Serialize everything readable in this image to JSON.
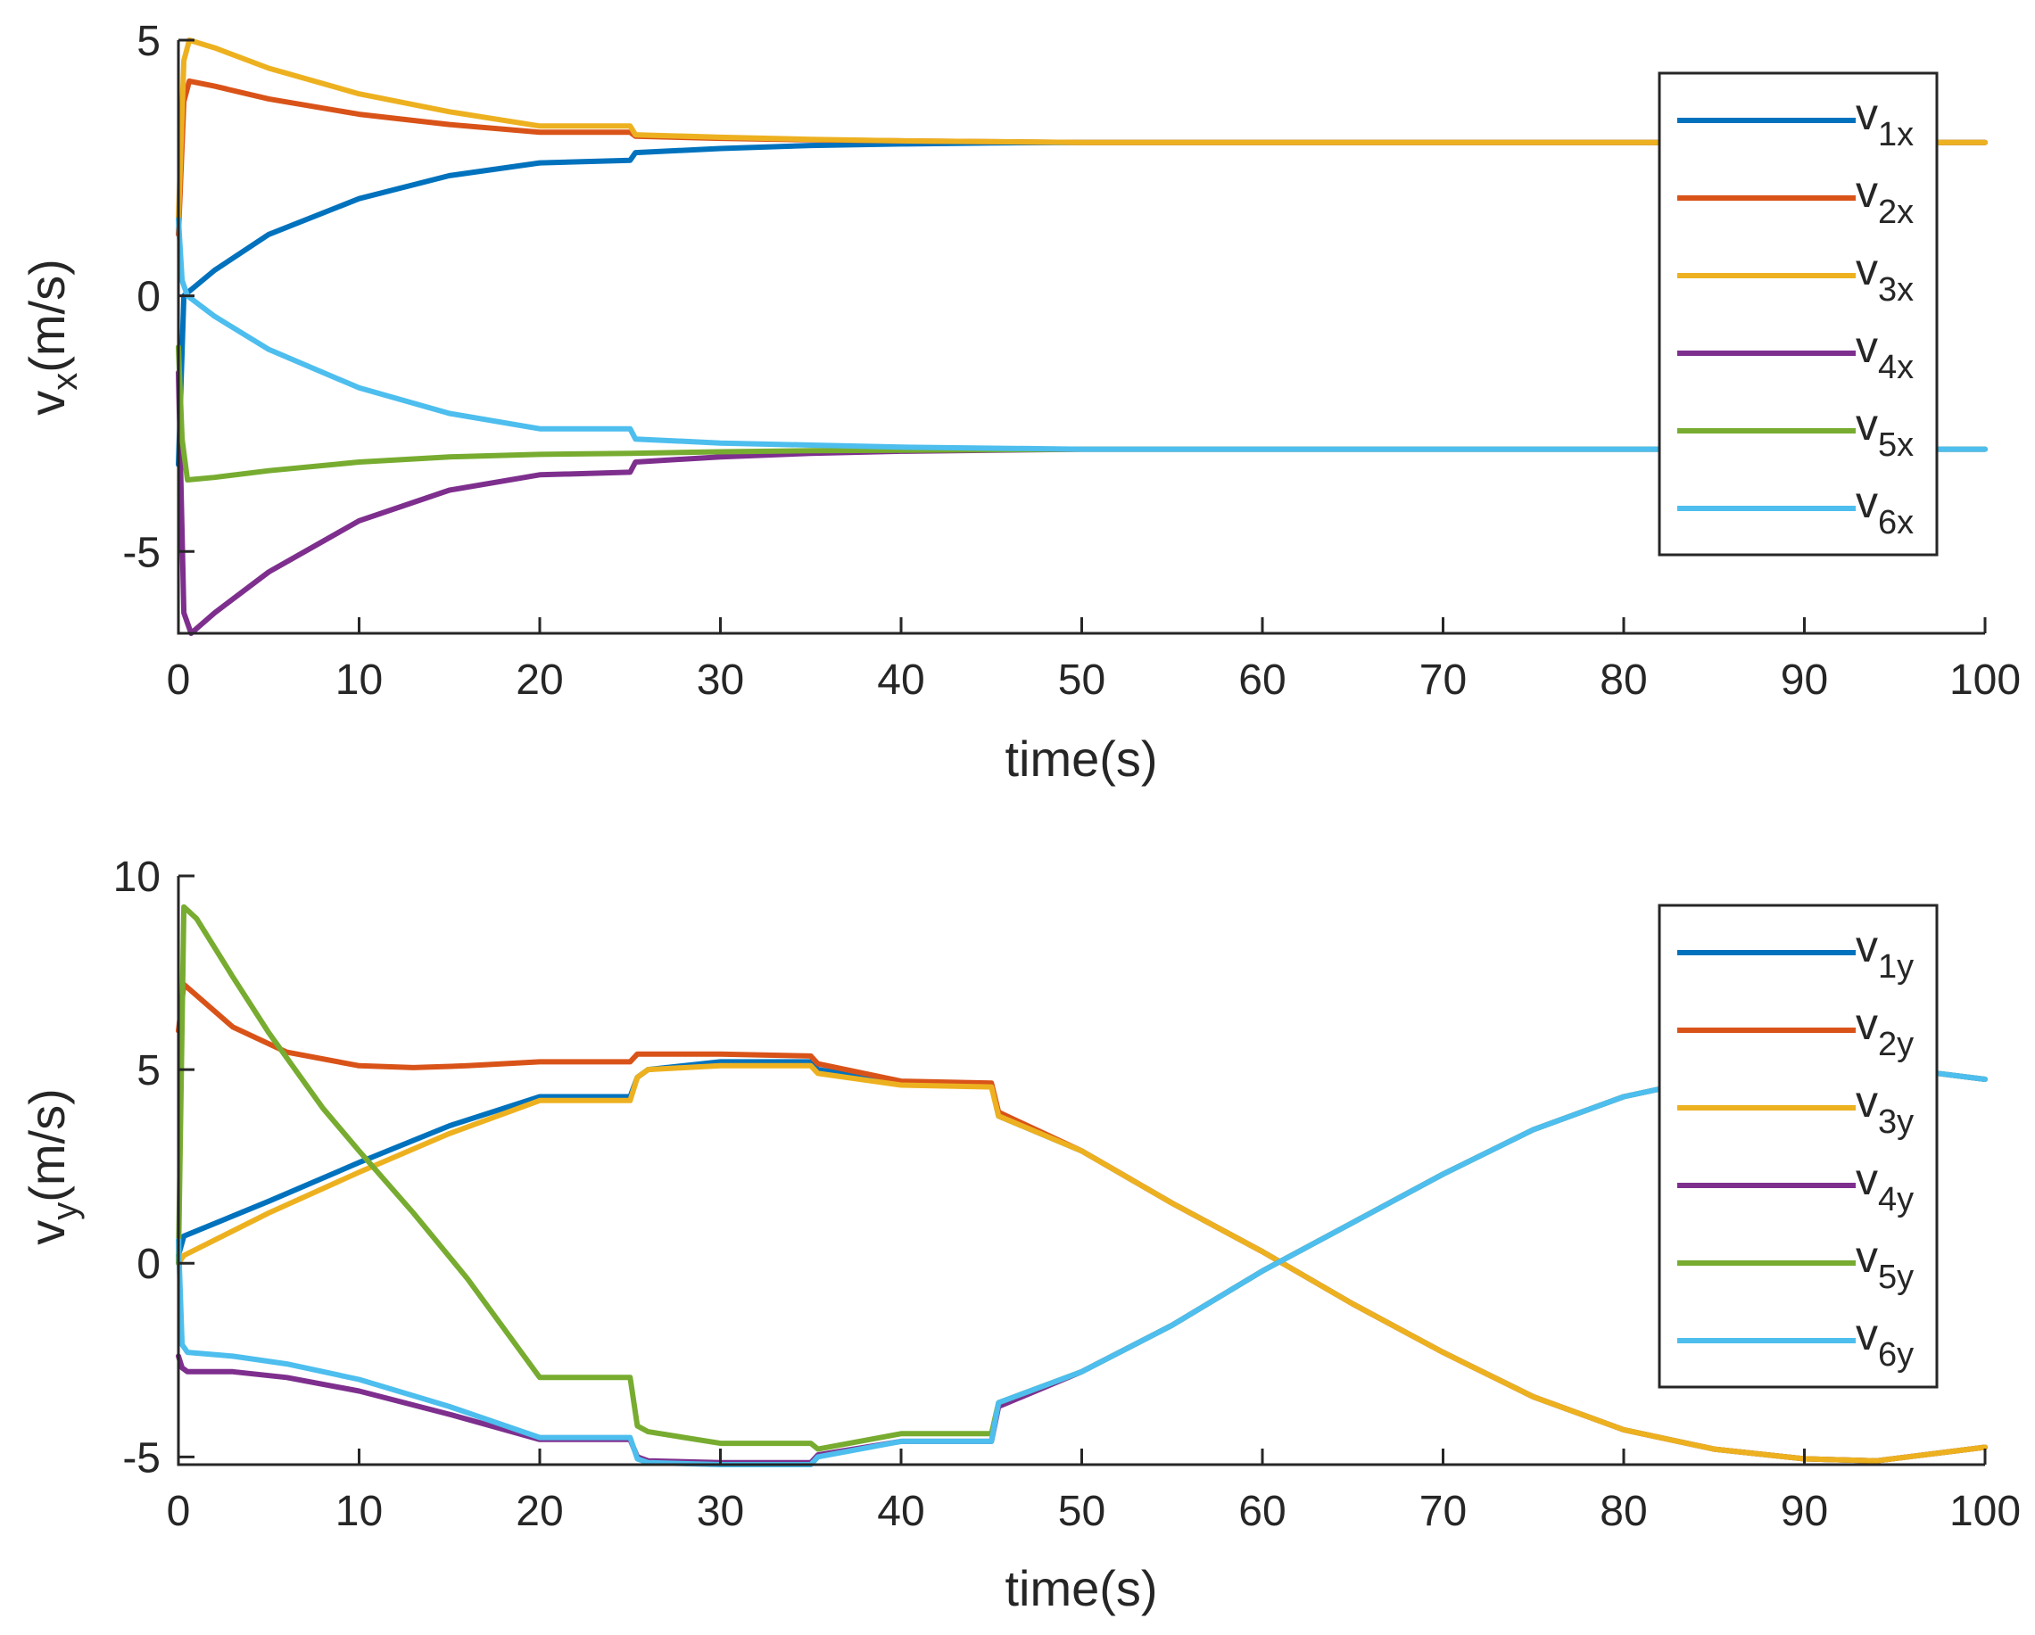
{
  "chart_data": [
    {
      "type": "line",
      "title": "",
      "xlabel": "time(s)",
      "ylabel": {
        "main": "v",
        "sub": "x",
        "unit": "(m/s)"
      },
      "xlim": [
        0,
        100
      ],
      "ylim": [
        -6.6,
        5
      ],
      "xticks": [
        0,
        10,
        20,
        30,
        40,
        50,
        60,
        70,
        80,
        90,
        100
      ],
      "yticks": [
        -5,
        0,
        5
      ],
      "grid": false,
      "legend_position": "top-right",
      "series": [
        {
          "name": "v",
          "sub": "1x",
          "color": "#0072BD",
          "x": [
            0,
            0.3,
            2,
            5,
            10,
            15,
            20,
            25,
            25.3,
            30,
            35,
            40,
            45,
            50,
            100
          ],
          "y": [
            -3.3,
            0,
            0.5,
            1.2,
            1.9,
            2.35,
            2.6,
            2.65,
            2.8,
            2.88,
            2.94,
            2.97,
            2.99,
            3.0,
            3.0
          ]
        },
        {
          "name": "v",
          "sub": "2x",
          "color": "#D95319",
          "x": [
            0,
            0.3,
            0.6,
            2,
            5,
            10,
            15,
            20,
            25,
            25.3,
            30,
            35,
            40,
            50,
            100
          ],
          "y": [
            1.2,
            3.8,
            4.2,
            4.1,
            3.85,
            3.55,
            3.35,
            3.2,
            3.2,
            3.12,
            3.08,
            3.05,
            3.03,
            3.0,
            3.0
          ]
        },
        {
          "name": "v",
          "sub": "3x",
          "color": "#EDB120",
          "x": [
            0,
            0.3,
            0.6,
            2,
            5,
            10,
            15,
            20,
            25,
            25.3,
            30,
            35,
            40,
            50,
            100
          ],
          "y": [
            1.5,
            4.6,
            5.0,
            4.85,
            4.45,
            3.95,
            3.6,
            3.32,
            3.32,
            3.15,
            3.1,
            3.06,
            3.03,
            3.0,
            3.0
          ]
        },
        {
          "name": "v",
          "sub": "4x",
          "color": "#7E2F8E",
          "x": [
            0,
            0.3,
            0.7,
            2,
            5,
            10,
            15,
            20,
            25,
            25.3,
            30,
            35,
            40,
            50,
            100
          ],
          "y": [
            -1.5,
            -6.2,
            -6.6,
            -6.2,
            -5.4,
            -4.4,
            -3.8,
            -3.5,
            -3.45,
            -3.25,
            -3.15,
            -3.08,
            -3.04,
            -3.0,
            -3.0
          ]
        },
        {
          "name": "v",
          "sub": "5x",
          "color": "#77AC30",
          "x": [
            0,
            0.2,
            0.5,
            2,
            5,
            10,
            15,
            20,
            25,
            30,
            35,
            40,
            50,
            100
          ],
          "y": [
            -1.0,
            -2.8,
            -3.6,
            -3.55,
            -3.42,
            -3.25,
            -3.15,
            -3.1,
            -3.08,
            -3.05,
            -3.03,
            -3.02,
            -3.0,
            -3.0
          ]
        },
        {
          "name": "v",
          "sub": "6x",
          "color": "#4DBEEE",
          "x": [
            0,
            0.2,
            0.5,
            2,
            5,
            10,
            15,
            20,
            25,
            25.3,
            30,
            35,
            40,
            50,
            100
          ],
          "y": [
            1.5,
            0.3,
            0.0,
            -0.4,
            -1.05,
            -1.8,
            -2.3,
            -2.6,
            -2.6,
            -2.8,
            -2.88,
            -2.92,
            -2.96,
            -3.0,
            -3.0
          ]
        }
      ]
    },
    {
      "type": "line",
      "title": "",
      "xlabel": "time(s)",
      "ylabel": {
        "main": "v",
        "sub": "y",
        "unit": "(m/s)"
      },
      "xlim": [
        0,
        100
      ],
      "ylim": [
        -5.2,
        10
      ],
      "xticks": [
        0,
        10,
        20,
        30,
        40,
        50,
        60,
        70,
        80,
        90,
        100
      ],
      "yticks": [
        -5,
        0,
        5,
        10
      ],
      "grid": false,
      "legend_position": "top-right",
      "series": [
        {
          "name": "v",
          "sub": "1y",
          "color": "#0072BD",
          "x": [
            0,
            0.3,
            5,
            10,
            15,
            20,
            25,
            25.4,
            26,
            30,
            35,
            35.4,
            40,
            45,
            45.4,
            50,
            55,
            60,
            65,
            70,
            75,
            80,
            85,
            90,
            94,
            100
          ],
          "y": [
            0.2,
            0.7,
            1.6,
            2.6,
            3.55,
            4.3,
            4.3,
            4.8,
            5.0,
            5.2,
            5.2,
            5.0,
            4.65,
            4.6,
            3.8,
            2.9,
            1.55,
            0.3,
            -1.05,
            -2.3,
            -3.45,
            -4.3,
            -4.8,
            -5.05,
            -5.1,
            -4.75
          ]
        },
        {
          "name": "v",
          "sub": "2y",
          "color": "#D95319",
          "x": [
            0,
            0.3,
            3,
            6,
            10,
            13,
            16,
            20,
            25,
            25.4,
            30,
            35,
            35.4,
            40,
            45,
            45.4,
            50,
            55,
            60,
            65,
            70,
            75,
            80,
            85,
            90,
            94,
            100
          ],
          "y": [
            6.0,
            7.2,
            6.1,
            5.45,
            5.1,
            5.05,
            5.1,
            5.2,
            5.2,
            5.4,
            5.4,
            5.35,
            5.15,
            4.7,
            4.65,
            3.9,
            2.9,
            1.55,
            0.3,
            -1.05,
            -2.3,
            -3.45,
            -4.3,
            -4.8,
            -5.05,
            -5.1,
            -4.75
          ]
        },
        {
          "name": "v",
          "sub": "3y",
          "color": "#EDB120",
          "x": [
            0,
            0.3,
            5,
            10,
            15,
            20,
            25,
            25.4,
            26,
            30,
            35,
            35.4,
            40,
            45,
            45.4,
            50,
            55,
            60,
            65,
            70,
            75,
            80,
            85,
            90,
            94,
            100
          ],
          "y": [
            0.0,
            0.2,
            1.3,
            2.35,
            3.35,
            4.2,
            4.2,
            4.8,
            5.0,
            5.1,
            5.1,
            4.9,
            4.6,
            4.55,
            3.8,
            2.9,
            1.55,
            0.3,
            -1.05,
            -2.3,
            -3.45,
            -4.3,
            -4.8,
            -5.05,
            -5.1,
            -4.75
          ]
        },
        {
          "name": "v",
          "sub": "4y",
          "color": "#7E2F8E",
          "x": [
            0,
            0.2,
            0.5,
            3,
            6,
            10,
            15,
            20,
            25,
            25.4,
            26,
            30,
            35,
            35.4,
            40,
            45,
            45.4,
            50,
            55,
            60,
            65,
            70,
            75,
            80,
            85,
            90,
            94,
            100
          ],
          "y": [
            -2.4,
            -2.7,
            -2.8,
            -2.8,
            -2.95,
            -3.3,
            -3.9,
            -4.55,
            -4.55,
            -5.0,
            -5.1,
            -5.15,
            -5.15,
            -4.95,
            -4.6,
            -4.6,
            -3.7,
            -2.8,
            -1.6,
            -0.2,
            1.05,
            2.3,
            3.45,
            4.3,
            4.8,
            5.05,
            5.1,
            4.75
          ]
        },
        {
          "name": "v",
          "sub": "5y",
          "color": "#77AC30",
          "x": [
            0,
            0.3,
            1,
            3,
            5,
            8,
            10,
            13,
            16,
            20,
            25,
            25.4,
            26,
            30,
            35,
            35.4,
            40,
            45,
            45.4,
            50,
            55,
            60,
            65,
            70,
            75,
            80,
            85,
            90,
            94,
            100
          ],
          "y": [
            0.0,
            9.2,
            8.9,
            7.4,
            5.95,
            4.0,
            2.9,
            1.3,
            -0.4,
            -2.95,
            -2.95,
            -4.2,
            -4.35,
            -4.65,
            -4.65,
            -4.8,
            -4.4,
            -4.4,
            -3.6,
            -2.8,
            -1.6,
            -0.2,
            1.05,
            2.3,
            3.45,
            4.3,
            4.8,
            5.05,
            5.1,
            4.75
          ]
        },
        {
          "name": "v",
          "sub": "6y",
          "color": "#4DBEEE",
          "x": [
            0,
            0.2,
            0.5,
            3,
            6,
            10,
            15,
            20,
            25,
            25.4,
            26,
            30,
            35,
            35.4,
            40,
            45,
            45.4,
            50,
            55,
            60,
            65,
            70,
            75,
            80,
            85,
            90,
            94,
            100
          ],
          "y": [
            0.6,
            -2.1,
            -2.3,
            -2.4,
            -2.6,
            -3.0,
            -3.7,
            -4.5,
            -4.5,
            -5.05,
            -5.15,
            -5.2,
            -5.2,
            -5.0,
            -4.6,
            -4.6,
            -3.6,
            -2.8,
            -1.6,
            -0.2,
            1.05,
            2.3,
            3.45,
            4.3,
            4.8,
            5.05,
            5.1,
            4.75
          ]
        }
      ]
    }
  ]
}
